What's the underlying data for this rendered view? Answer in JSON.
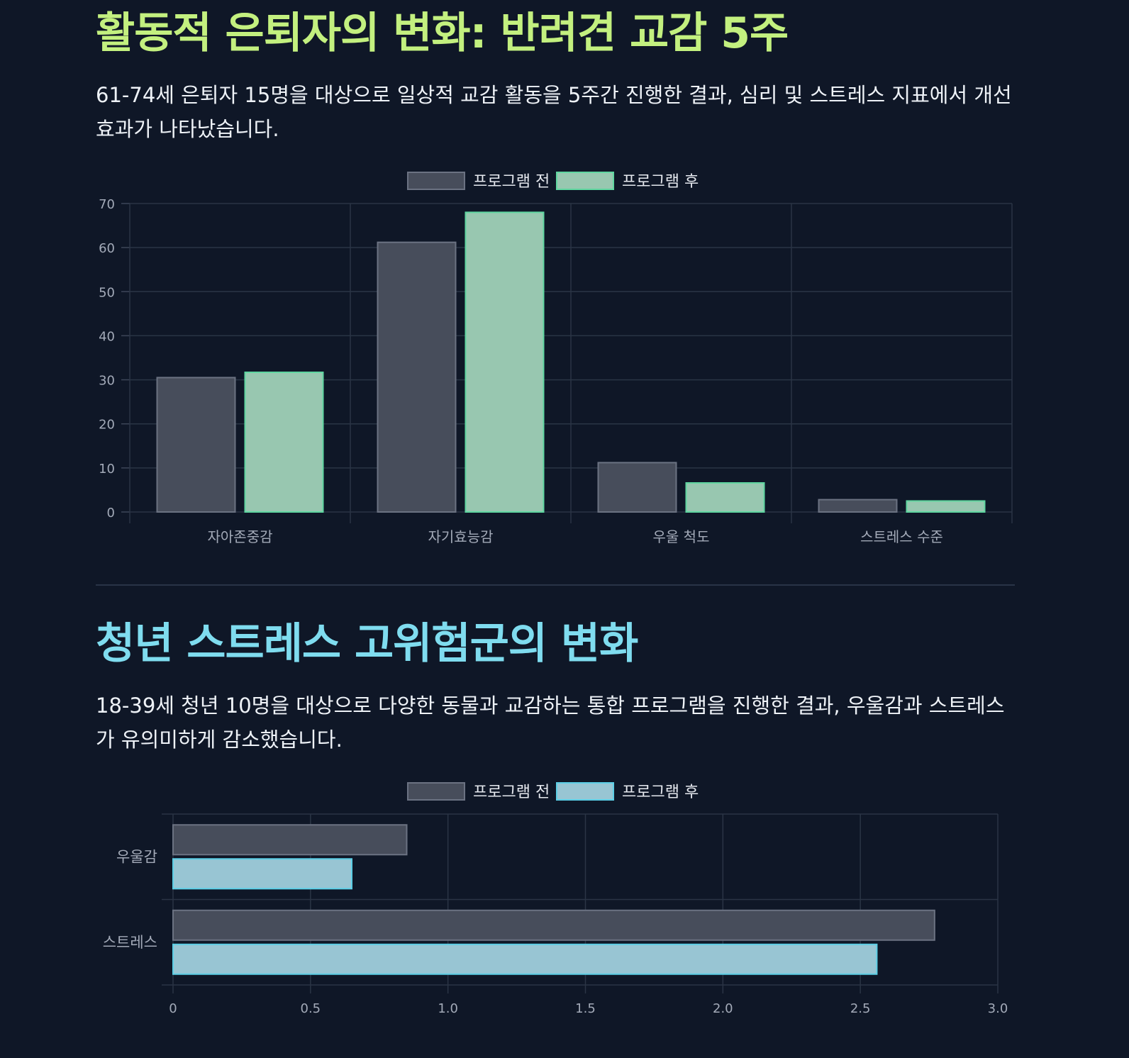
{
  "sections": [
    {
      "title": "활동적 은퇴자의 변화: 반려견 교감 5주",
      "title_color": "#c3f07f",
      "description": "61-74세 은퇴자 15명을 대상으로 일상적 교감 활동을 5주간 진행한 결과, 심리 및 스트레스 지표에서 개선 효과가 나타났습니다."
    },
    {
      "title": "청년 스트레스 고위험군의 변화",
      "title_color": "#7fdcef",
      "description": "18-39세 청년 10명을 대상으로 다양한 동물과 교감하는 통합 프로그램을 진행한 결과, 우울감과 스트레스가 유의미하게 감소했습니다."
    }
  ],
  "chart_data": [
    {
      "type": "bar",
      "orientation": "vertical",
      "categories": [
        "자아존중감",
        "자기효능감",
        "우울 척도",
        "스트레스 수준"
      ],
      "series": [
        {
          "name": "프로그램 전",
          "values": [
            30.5,
            61.2,
            11.2,
            2.8
          ],
          "fill": "#474d5b",
          "stroke": "#6b7282"
        },
        {
          "name": "프로그램 후",
          "values": [
            31.7,
            68.0,
            6.6,
            2.5
          ],
          "fill": "#98c7b0",
          "stroke": "#5fd6a0"
        }
      ],
      "ylim": [
        0,
        70
      ],
      "yticks": [
        "0",
        "10",
        "20",
        "30",
        "40",
        "50",
        "60",
        "70"
      ],
      "grid": true,
      "legend": "top-center"
    },
    {
      "type": "bar",
      "orientation": "horizontal",
      "categories": [
        "우울감",
        "스트레스"
      ],
      "series": [
        {
          "name": "프로그램 전",
          "values": [
            0.85,
            2.77
          ],
          "fill": "#474d5b",
          "stroke": "#6b7282"
        },
        {
          "name": "프로그램 후",
          "values": [
            0.65,
            2.56
          ],
          "fill": "#98c5d3",
          "stroke": "#5ccfe6"
        }
      ],
      "xlim": [
        0,
        3.0
      ],
      "xticks": [
        "0",
        "0.5",
        "1.0",
        "1.5",
        "2.0",
        "2.5",
        "3.0"
      ],
      "grid": true,
      "legend": "top-center"
    }
  ]
}
